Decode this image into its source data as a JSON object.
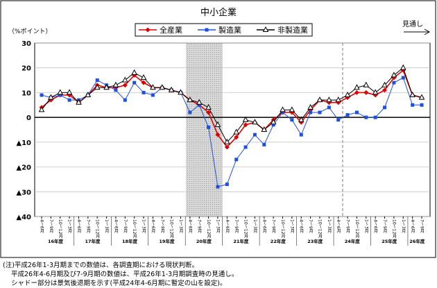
{
  "chart_data": {
    "type": "line",
    "title": "中小企業",
    "y_label": "（%ポイント）",
    "forecast_label": "見通し",
    "categories": [
      "4～6月",
      "7～9月",
      "10～12月",
      "1～3月",
      "4～6月",
      "7～9月",
      "10～12月",
      "1～3月",
      "4～6月",
      "7～9月",
      "10～12月",
      "1～3月",
      "4～6月",
      "7～9月",
      "10～12月",
      "1～3月",
      "4～6月",
      "7～9月",
      "10～12月",
      "1～3月",
      "4～6月",
      "7～9月",
      "10～12月",
      "1～3月",
      "4～6月",
      "7～9月",
      "10～12月",
      "1～3月",
      "4～6月",
      "7～9月",
      "10～12月",
      "1～3月",
      "4～6月",
      "7～9月",
      "10～12月",
      "1～3月",
      "4～6月",
      "7～9月",
      "10～12月",
      "1～3月",
      "4～6月",
      "7～9月"
    ],
    "years": [
      "16年度",
      "17年度",
      "18年度",
      "19年度",
      "20年度",
      "21年度",
      "22年度",
      "23年度",
      "24年度",
      "25年度",
      "26年度"
    ],
    "series": [
      {
        "name": "全産業",
        "color": "#e00000",
        "marker": "diamond",
        "values": [
          4,
          7,
          9,
          9,
          6,
          9,
          13,
          12,
          12,
          13,
          17,
          14,
          12,
          12,
          11,
          10,
          7,
          5,
          2,
          -7,
          -12,
          -8,
          -3,
          -2,
          -5,
          -1,
          2,
          2,
          -2,
          3,
          7,
          6,
          6,
          8,
          10,
          10,
          9,
          11,
          16,
          19,
          9,
          8
        ]
      },
      {
        "name": "製造業",
        "color": "#1f4fe0",
        "marker": "square",
        "values": [
          9,
          8,
          9,
          7,
          7,
          9,
          15,
          13,
          11,
          7,
          14,
          10,
          9,
          12,
          11,
          10,
          2,
          5,
          -4,
          -28,
          -27,
          -17,
          -12,
          -7,
          -11,
          -3,
          2,
          -1,
          -7,
          2,
          2,
          4,
          -1,
          1,
          2,
          0,
          0,
          4,
          14,
          16,
          5,
          5
        ]
      },
      {
        "name": "非製造業",
        "color": "#000000",
        "marker": "triangle",
        "values": [
          3,
          8,
          10,
          10,
          6,
          9,
          12,
          12,
          13,
          15,
          18,
          16,
          12,
          12,
          11,
          10,
          7,
          6,
          4,
          -3,
          -10,
          -6,
          -1,
          -2,
          -5,
          -2,
          3,
          3,
          -1,
          4,
          7,
          7,
          7,
          9,
          12,
          13,
          10,
          13,
          17,
          20,
          9,
          8
        ]
      }
    ],
    "ylim": [
      -40,
      30
    ],
    "yticks": [
      30,
      20,
      10,
      0,
      {
        "value": -10,
        "label": "▲10"
      },
      {
        "value": -20,
        "label": "▲20"
      },
      {
        "value": -30,
        "label": "▲30"
      },
      {
        "value": -40,
        "label": "▲40"
      }
    ],
    "grid": true
  },
  "notes": [
    "(注)平成26年1-3月期までの数値は、各調査期における現状判断。",
    "平成26年4-6月期及び7-9月期の数値は、平成26年1-3月期調査時の見通し。",
    "シャドー部分は景気後退期を示す(平成24年4-6月期に暫定の山を設定)。"
  ]
}
